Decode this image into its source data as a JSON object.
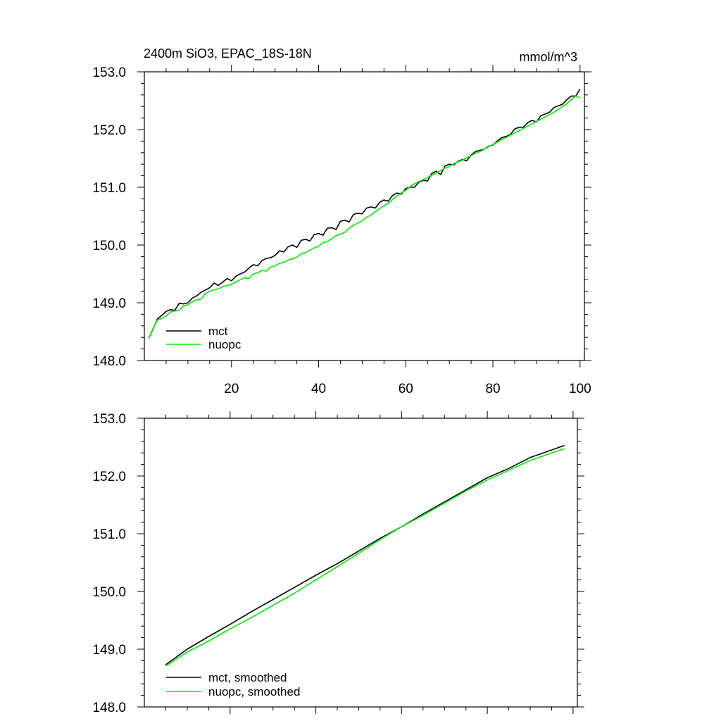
{
  "figure": {
    "title": "2400m SiO3, EPAC_18S-18N",
    "units": "mmol/m^3"
  },
  "chart_data": [
    {
      "type": "line",
      "panel": "top",
      "title": "2400m SiO3, EPAC_18S-18N",
      "units_label": "mmol/m^3",
      "xlim": [
        0,
        101
      ],
      "ylim": [
        148.0,
        153.0
      ],
      "x_ticks": [
        20,
        40,
        60,
        80,
        100
      ],
      "x_tick_labels": [
        "20",
        "40",
        "60",
        "80",
        "100"
      ],
      "y_ticks": [
        148.0,
        149.0,
        150.0,
        151.0,
        152.0,
        153.0
      ],
      "y_tick_labels": [
        "148.0",
        "149.0",
        "150.0",
        "151.0",
        "152.0",
        "153.0"
      ],
      "grid": false,
      "legend": "bottom-left",
      "series": [
        {
          "name": "mct",
          "color": "#000000",
          "x": [
            1,
            2,
            3,
            4,
            5,
            6,
            7,
            8,
            9,
            10,
            11,
            12,
            13,
            14,
            15,
            16,
            17,
            18,
            19,
            20,
            21,
            22,
            23,
            24,
            25,
            26,
            27,
            28,
            29,
            30,
            31,
            32,
            33,
            34,
            35,
            36,
            37,
            38,
            39,
            40,
            41,
            42,
            43,
            44,
            45,
            46,
            47,
            48,
            49,
            50,
            51,
            52,
            53,
            54,
            55,
            56,
            57,
            58,
            59,
            60,
            61,
            62,
            63,
            64,
            65,
            66,
            67,
            68,
            69,
            70,
            71,
            72,
            73,
            74,
            75,
            76,
            77,
            78,
            79,
            80,
            81,
            82,
            83,
            84,
            85,
            86,
            87,
            88,
            89,
            90,
            91,
            92,
            93,
            94,
            95,
            96,
            97,
            98,
            99,
            100
          ],
          "values": [
            148.38,
            148.55,
            148.72,
            148.78,
            148.85,
            148.88,
            148.87,
            148.99,
            148.98,
            149.0,
            149.08,
            149.12,
            149.18,
            149.22,
            149.26,
            149.34,
            149.3,
            149.36,
            149.42,
            149.38,
            149.46,
            149.5,
            149.53,
            149.6,
            149.66,
            149.64,
            149.73,
            149.77,
            149.78,
            149.82,
            149.9,
            149.88,
            149.97,
            150.0,
            149.96,
            150.08,
            150.1,
            150.07,
            150.18,
            150.2,
            150.17,
            150.29,
            150.3,
            150.27,
            150.41,
            150.43,
            150.4,
            150.53,
            150.55,
            150.54,
            150.64,
            150.66,
            150.64,
            150.74,
            150.78,
            150.76,
            150.86,
            150.9,
            150.88,
            150.98,
            151.0,
            151.0,
            151.09,
            151.12,
            151.11,
            151.24,
            151.28,
            151.22,
            151.37,
            151.4,
            151.39,
            151.45,
            151.48,
            151.46,
            151.56,
            151.62,
            151.64,
            151.66,
            151.71,
            151.73,
            151.8,
            151.86,
            151.88,
            151.91,
            152.01,
            152.04,
            152.04,
            152.12,
            152.16,
            152.13,
            152.24,
            152.27,
            152.3,
            152.38,
            152.41,
            152.44,
            152.52,
            152.58,
            152.58,
            152.7
          ]
        },
        {
          "name": "nuopc",
          "color": "#00ee00",
          "x": [
            1,
            2,
            3,
            4,
            5,
            6,
            7,
            8,
            9,
            10,
            11,
            12,
            13,
            14,
            15,
            16,
            17,
            18,
            19,
            20,
            21,
            22,
            23,
            24,
            25,
            26,
            27,
            28,
            29,
            30,
            31,
            32,
            33,
            34,
            35,
            36,
            37,
            38,
            39,
            40,
            41,
            42,
            43,
            44,
            45,
            46,
            47,
            48,
            49,
            50,
            51,
            52,
            53,
            54,
            55,
            56,
            57,
            58,
            59,
            60,
            61,
            62,
            63,
            64,
            65,
            66,
            67,
            68,
            69,
            70,
            71,
            72,
            73,
            74,
            75,
            76,
            77,
            78,
            79,
            80,
            81,
            82,
            83,
            84,
            85,
            86,
            87,
            88,
            89,
            90,
            91,
            92,
            93,
            94,
            95,
            96,
            97,
            98,
            99,
            100
          ],
          "values": [
            148.38,
            148.56,
            148.7,
            148.73,
            148.77,
            148.84,
            148.86,
            148.87,
            148.95,
            148.96,
            149.02,
            149.05,
            149.06,
            149.16,
            149.2,
            149.22,
            149.24,
            149.28,
            149.3,
            149.32,
            149.36,
            149.4,
            149.43,
            149.42,
            149.5,
            149.52,
            149.56,
            149.55,
            149.62,
            149.64,
            149.68,
            149.7,
            149.74,
            149.76,
            149.79,
            149.85,
            149.87,
            149.91,
            149.95,
            149.98,
            150.04,
            150.06,
            150.11,
            150.16,
            150.19,
            150.22,
            150.29,
            150.34,
            150.38,
            150.42,
            150.48,
            150.52,
            150.58,
            150.63,
            150.68,
            150.72,
            150.79,
            150.85,
            150.9,
            150.95,
            151.01,
            151.06,
            151.1,
            151.13,
            151.17,
            151.21,
            151.25,
            151.29,
            151.33,
            151.36,
            151.41,
            151.44,
            151.47,
            151.51,
            151.55,
            151.59,
            151.62,
            151.66,
            151.7,
            151.74,
            151.78,
            151.83,
            151.86,
            151.9,
            151.94,
            151.98,
            152.02,
            152.06,
            152.1,
            152.14,
            152.18,
            152.22,
            152.26,
            152.3,
            152.35,
            152.4,
            152.45,
            152.52,
            152.58,
            152.55
          ]
        }
      ]
    },
    {
      "type": "line",
      "panel": "bottom",
      "xlim": [
        0,
        101
      ],
      "ylim": [
        148.0,
        153.0
      ],
      "x_ticks": [
        20,
        40,
        60,
        80,
        100
      ],
      "y_ticks": [
        148.0,
        149.0,
        150.0,
        151.0,
        152.0,
        153.0
      ],
      "y_tick_labels": [
        "148.0",
        "149.0",
        "150.0",
        "151.0",
        "152.0",
        "153.0"
      ],
      "grid": false,
      "legend": "bottom-left",
      "series": [
        {
          "name": "mct, smoothed",
          "color": "#000000",
          "x": [
            5,
            10,
            15,
            20,
            25,
            30,
            35,
            40,
            45,
            50,
            55,
            60,
            65,
            70,
            75,
            80,
            85,
            90,
            95,
            98
          ],
          "values": [
            148.73,
            149.0,
            149.22,
            149.43,
            149.65,
            149.86,
            150.07,
            150.28,
            150.48,
            150.7,
            150.92,
            151.12,
            151.34,
            151.55,
            151.76,
            151.97,
            152.13,
            152.32,
            152.45,
            152.53
          ]
        },
        {
          "name": "nuopc, smoothed",
          "color": "#00ee00",
          "x": [
            5,
            10,
            15,
            20,
            25,
            30,
            35,
            40,
            45,
            50,
            55,
            60,
            65,
            70,
            75,
            80,
            85,
            90,
            95,
            98
          ],
          "values": [
            148.71,
            148.95,
            149.14,
            149.35,
            149.55,
            149.76,
            149.97,
            150.2,
            150.43,
            150.66,
            150.9,
            151.12,
            151.32,
            151.53,
            151.74,
            151.93,
            152.1,
            152.27,
            152.4,
            152.47
          ]
        }
      ]
    }
  ]
}
